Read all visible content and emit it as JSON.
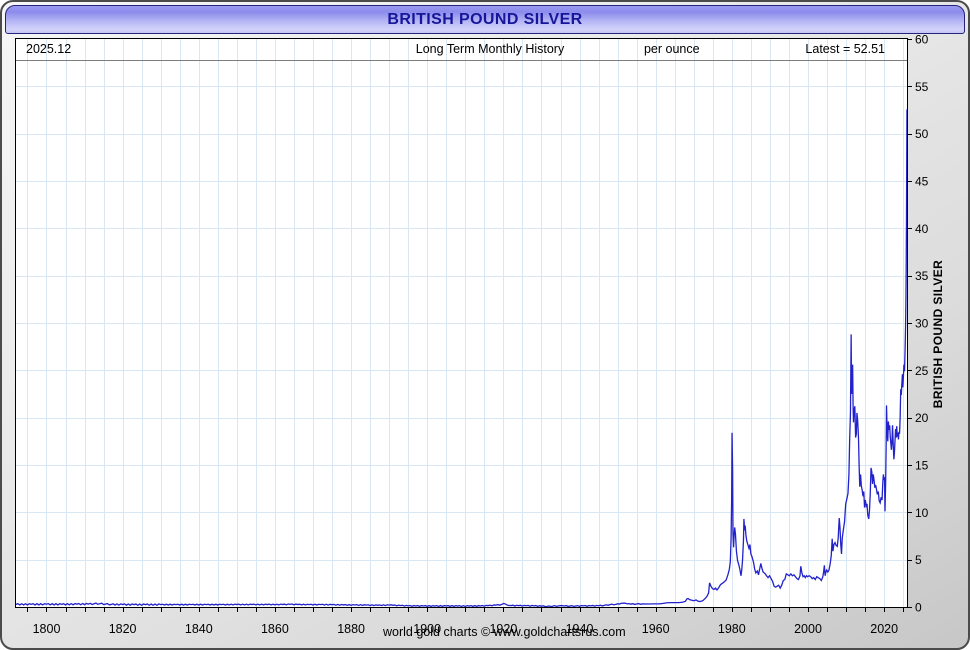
{
  "window": {
    "title": "BRITISH POUND SILVER"
  },
  "info_bar": {
    "date": "2025.12",
    "subtitle": "Long Term Monthly History",
    "unit": "per ounce",
    "latest": "Latest = 52.51"
  },
  "footer": {
    "credit": "world gold charts © www.goldchartsrus.com"
  },
  "colors": {
    "line": "#2222cd",
    "grid": "#d9e7f5",
    "plot_border": "#000000",
    "title_text": "#16169b",
    "titlebar_top": "#8b8bec",
    "titlebar_bottom": "#d2d2fa",
    "body_gray": "#e0e0e0"
  },
  "chart_data": {
    "type": "line",
    "title": "BRITISH POUND SILVER",
    "subtitle": "Long Term Monthly History",
    "ylabel": "BRITISH POUND SILVER",
    "unit": "per ounce",
    "latest_value": 52.51,
    "latest_period": "2025.12",
    "x_domain": [
      1792,
      2026
    ],
    "y_domain": [
      0,
      60
    ],
    "x_tick_labels": [
      1800,
      1820,
      1840,
      1860,
      1880,
      1900,
      1920,
      1940,
      1960,
      1980,
      2000,
      2020
    ],
    "x_minor_tick_step": 5,
    "y_tick_values": [
      0,
      5,
      10,
      15,
      20,
      25,
      30,
      35,
      40,
      45,
      50,
      55,
      60
    ],
    "grid": true,
    "legend": "none",
    "line_color": "#2222cd",
    "grid_color": "#d9e7f5",
    "series_name": "British pound silver price per ounce (monthly)",
    "points": [
      [
        1792,
        0.28
      ],
      [
        1796,
        0.28
      ],
      [
        1800,
        0.29
      ],
      [
        1804,
        0.28
      ],
      [
        1808,
        0.3
      ],
      [
        1811,
        0.31
      ],
      [
        1812.5,
        0.34
      ],
      [
        1814,
        0.35
      ],
      [
        1815.5,
        0.31
      ],
      [
        1817,
        0.27
      ],
      [
        1820,
        0.26
      ],
      [
        1823,
        0.25
      ],
      [
        1826,
        0.25
      ],
      [
        1830,
        0.25
      ],
      [
        1834,
        0.25
      ],
      [
        1838,
        0.25
      ],
      [
        1842,
        0.25
      ],
      [
        1846,
        0.25
      ],
      [
        1850,
        0.26
      ],
      [
        1854,
        0.26
      ],
      [
        1858,
        0.26
      ],
      [
        1862,
        0.26
      ],
      [
        1864,
        0.28
      ],
      [
        1866,
        0.26
      ],
      [
        1869,
        0.25
      ],
      [
        1872,
        0.25
      ],
      [
        1875,
        0.24
      ],
      [
        1878,
        0.22
      ],
      [
        1881,
        0.21
      ],
      [
        1884,
        0.2
      ],
      [
        1887,
        0.18
      ],
      [
        1890,
        0.2
      ],
      [
        1891,
        0.18
      ],
      [
        1893,
        0.15
      ],
      [
        1895,
        0.12
      ],
      [
        1897,
        0.11
      ],
      [
        1899,
        0.11
      ],
      [
        1902,
        0.1
      ],
      [
        1905,
        0.11
      ],
      [
        1908,
        0.1
      ],
      [
        1911,
        0.1
      ],
      [
        1914,
        0.11
      ],
      [
        1916,
        0.14
      ],
      [
        1918,
        0.19
      ],
      [
        1919.5,
        0.26
      ],
      [
        1920.1,
        0.38
      ],
      [
        1920.6,
        0.3
      ],
      [
        1921.2,
        0.17
      ],
      [
        1922,
        0.15
      ],
      [
        1924,
        0.14
      ],
      [
        1926,
        0.13
      ],
      [
        1928,
        0.12
      ],
      [
        1930,
        0.09
      ],
      [
        1931.5,
        0.07
      ],
      [
        1933,
        0.09
      ],
      [
        1934.5,
        0.12
      ],
      [
        1935.3,
        0.15
      ],
      [
        1936,
        0.11
      ],
      [
        1937.5,
        0.1
      ],
      [
        1939,
        0.1
      ],
      [
        1941,
        0.12
      ],
      [
        1943,
        0.12
      ],
      [
        1945,
        0.13
      ],
      [
        1946.5,
        0.17
      ],
      [
        1948,
        0.25
      ],
      [
        1949.5,
        0.28
      ],
      [
        1950.5,
        0.31
      ],
      [
        1951.5,
        0.4
      ],
      [
        1952.5,
        0.33
      ],
      [
        1953.5,
        0.3
      ],
      [
        1955,
        0.32
      ],
      [
        1956.5,
        0.33
      ],
      [
        1958,
        0.32
      ],
      [
        1959.5,
        0.33
      ],
      [
        1961,
        0.33
      ],
      [
        1962,
        0.38
      ],
      [
        1963,
        0.45
      ],
      [
        1964.5,
        0.46
      ],
      [
        1966,
        0.46
      ],
      [
        1967,
        0.5
      ],
      [
        1967.8,
        0.6
      ],
      [
        1968.2,
        0.85
      ],
      [
        1968.5,
        0.9
      ],
      [
        1968.9,
        0.78
      ],
      [
        1969.4,
        0.72
      ],
      [
        1970,
        0.66
      ],
      [
        1970.6,
        0.74
      ],
      [
        1971.2,
        0.6
      ],
      [
        1971.8,
        0.58
      ],
      [
        1972.4,
        0.68
      ],
      [
        1973,
        0.9
      ],
      [
        1973.5,
        1.15
      ],
      [
        1973.9,
        1.5
      ],
      [
        1974.15,
        2.55
      ],
      [
        1974.5,
        2.2
      ],
      [
        1974.9,
        1.95
      ],
      [
        1975.3,
        1.85
      ],
      [
        1975.7,
        2.0
      ],
      [
        1976.1,
        1.8
      ],
      [
        1976.5,
        2.0
      ],
      [
        1977,
        2.35
      ],
      [
        1977.5,
        2.5
      ],
      [
        1978,
        2.65
      ],
      [
        1978.5,
        2.85
      ],
      [
        1979,
        3.45
      ],
      [
        1979.35,
        4.0
      ],
      [
        1979.6,
        4.8
      ],
      [
        1979.8,
        7.2
      ],
      [
        1979.95,
        11.5
      ],
      [
        1980.05,
        18.4
      ],
      [
        1980.2,
        14.5
      ],
      [
        1980.3,
        7.8
      ],
      [
        1980.45,
        6.3
      ],
      [
        1980.6,
        7.6
      ],
      [
        1980.75,
        8.4
      ],
      [
        1980.95,
        7.7
      ],
      [
        1981.2,
        5.9
      ],
      [
        1981.5,
        4.9
      ],
      [
        1981.8,
        4.5
      ],
      [
        1982.1,
        4.0
      ],
      [
        1982.4,
        3.3
      ],
      [
        1982.6,
        3.9
      ],
      [
        1982.8,
        4.9
      ],
      [
        1983.05,
        7.0
      ],
      [
        1983.17,
        9.3
      ],
      [
        1983.35,
        8.1
      ],
      [
        1983.5,
        8.6
      ],
      [
        1983.7,
        7.6
      ],
      [
        1983.9,
        7.0
      ],
      [
        1984.2,
        6.6
      ],
      [
        1984.5,
        6.2
      ],
      [
        1984.75,
        6.6
      ],
      [
        1985,
        5.6
      ],
      [
        1985.3,
        5.3
      ],
      [
        1985.7,
        4.7
      ],
      [
        1986,
        4.0
      ],
      [
        1986.3,
        3.6
      ],
      [
        1986.7,
        3.8
      ],
      [
        1987,
        3.4
      ],
      [
        1987.3,
        4.0
      ],
      [
        1987.6,
        4.6
      ],
      [
        1987.9,
        4.1
      ],
      [
        1988.2,
        3.7
      ],
      [
        1988.5,
        3.6
      ],
      [
        1988.8,
        3.5
      ],
      [
        1989.1,
        3.3
      ],
      [
        1989.5,
        3.1
      ],
      [
        1989.9,
        3.3
      ],
      [
        1990.3,
        3.0
      ],
      [
        1990.7,
        2.7
      ],
      [
        1991.1,
        2.2
      ],
      [
        1991.5,
        2.1
      ],
      [
        1991.9,
        2.2
      ],
      [
        1992.3,
        2.3
      ],
      [
        1992.7,
        2.0
      ],
      [
        1993.1,
        2.3
      ],
      [
        1993.5,
        2.8
      ],
      [
        1993.9,
        2.9
      ],
      [
        1994.3,
        3.5
      ],
      [
        1994.7,
        3.4
      ],
      [
        1995.1,
        3.3
      ],
      [
        1995.5,
        3.5
      ],
      [
        1995.9,
        3.3
      ],
      [
        1996.3,
        3.4
      ],
      [
        1996.7,
        3.2
      ],
      [
        1997.1,
        3.0
      ],
      [
        1997.5,
        2.9
      ],
      [
        1997.9,
        3.3
      ],
      [
        1998.1,
        4.3
      ],
      [
        1998.4,
        3.6
      ],
      [
        1998.7,
        3.2
      ],
      [
        1999,
        3.3
      ],
      [
        1999.3,
        3.1
      ],
      [
        1999.6,
        3.3
      ],
      [
        1999.9,
        3.2
      ],
      [
        2000.3,
        3.3
      ],
      [
        2000.7,
        3.2
      ],
      [
        2001.1,
        3.0
      ],
      [
        2001.5,
        3.1
      ],
      [
        2001.9,
        2.9
      ],
      [
        2002.3,
        3.2
      ],
      [
        2002.7,
        3.1
      ],
      [
        2003.1,
        3.0
      ],
      [
        2003.5,
        2.8
      ],
      [
        2003.9,
        3.2
      ],
      [
        2004.1,
        3.7
      ],
      [
        2004.3,
        4.4
      ],
      [
        2004.5,
        3.3
      ],
      [
        2004.7,
        3.7
      ],
      [
        2004.9,
        3.9
      ],
      [
        2005.2,
        3.7
      ],
      [
        2005.5,
        3.9
      ],
      [
        2005.8,
        4.5
      ],
      [
        2006.1,
        5.4
      ],
      [
        2006.35,
        7.2
      ],
      [
        2006.55,
        5.9
      ],
      [
        2006.8,
        6.6
      ],
      [
        2007.1,
        6.8
      ],
      [
        2007.4,
        6.5
      ],
      [
        2007.7,
        6.4
      ],
      [
        2007.95,
        7.4
      ],
      [
        2008.2,
        9.4
      ],
      [
        2008.4,
        8.4
      ],
      [
        2008.6,
        6.6
      ],
      [
        2008.8,
        5.6
      ],
      [
        2009,
        7.3
      ],
      [
        2009.3,
        8.2
      ],
      [
        2009.6,
        9.0
      ],
      [
        2009.9,
        10.9
      ],
      [
        2010.2,
        11.4
      ],
      [
        2010.5,
        12.0
      ],
      [
        2010.75,
        14.0
      ],
      [
        2010.95,
        17.8
      ],
      [
        2011.15,
        20.5
      ],
      [
        2011.33,
        28.8
      ],
      [
        2011.45,
        22.5
      ],
      [
        2011.6,
        24.8
      ],
      [
        2011.72,
        25.6
      ],
      [
        2011.85,
        21.0
      ],
      [
        2011.95,
        19.5
      ],
      [
        2012.1,
        20.8
      ],
      [
        2012.3,
        21.2
      ],
      [
        2012.5,
        17.9
      ],
      [
        2012.7,
        18.3
      ],
      [
        2012.85,
        20.5
      ],
      [
        2013.05,
        19.7
      ],
      [
        2013.25,
        18.0
      ],
      [
        2013.45,
        14.6
      ],
      [
        2013.6,
        12.7
      ],
      [
        2013.8,
        14.0
      ],
      [
        2014,
        12.8
      ],
      [
        2014.2,
        12.4
      ],
      [
        2014.45,
        11.7
      ],
      [
        2014.65,
        12.2
      ],
      [
        2014.85,
        10.5
      ],
      [
        2015.05,
        11.3
      ],
      [
        2015.3,
        10.7
      ],
      [
        2015.5,
        10.9
      ],
      [
        2015.7,
        9.7
      ],
      [
        2015.95,
        9.3
      ],
      [
        2016.15,
        10.2
      ],
      [
        2016.35,
        12.0
      ],
      [
        2016.55,
        14.7
      ],
      [
        2016.75,
        14.3
      ],
      [
        2016.95,
        13.0
      ],
      [
        2017.15,
        14.0
      ],
      [
        2017.35,
        13.4
      ],
      [
        2017.55,
        12.6
      ],
      [
        2017.75,
        12.9
      ],
      [
        2017.95,
        12.5
      ],
      [
        2018.2,
        11.9
      ],
      [
        2018.45,
        12.2
      ],
      [
        2018.7,
        11.2
      ],
      [
        2018.95,
        11.0
      ],
      [
        2019.2,
        11.6
      ],
      [
        2019.45,
        11.3
      ],
      [
        2019.65,
        13.2
      ],
      [
        2019.8,
        14.0
      ],
      [
        2019.95,
        13.4
      ],
      [
        2020.1,
        13.7
      ],
      [
        2020.22,
        10.1
      ],
      [
        2020.4,
        13.3
      ],
      [
        2020.55,
        17.9
      ],
      [
        2020.62,
        21.3
      ],
      [
        2020.78,
        18.7
      ],
      [
        2020.95,
        17.5
      ],
      [
        2021.1,
        19.6
      ],
      [
        2021.3,
        18.7
      ],
      [
        2021.45,
        19.2
      ],
      [
        2021.6,
        18.0
      ],
      [
        2021.75,
        17.3
      ],
      [
        2021.9,
        16.6
      ],
      [
        2022.05,
        17.4
      ],
      [
        2022.2,
        19.2
      ],
      [
        2022.4,
        17.0
      ],
      [
        2022.55,
        15.6
      ],
      [
        2022.7,
        16.3
      ],
      [
        2022.85,
        17.6
      ],
      [
        2023,
        18.8
      ],
      [
        2023.15,
        17.9
      ],
      [
        2023.3,
        19.1
      ],
      [
        2023.45,
        18.0
      ],
      [
        2023.6,
        18.4
      ],
      [
        2023.75,
        17.7
      ],
      [
        2023.9,
        18.5
      ],
      [
        2024.05,
        18.3
      ],
      [
        2024.2,
        20.0
      ],
      [
        2024.35,
        23.0
      ],
      [
        2024.5,
        22.4
      ],
      [
        2024.65,
        23.6
      ],
      [
        2024.8,
        24.6
      ],
      [
        2024.9,
        23.2
      ],
      [
        2025.05,
        24.3
      ],
      [
        2025.2,
        25.6
      ],
      [
        2025.35,
        24.9
      ],
      [
        2025.5,
        27.2
      ],
      [
        2025.62,
        29.5
      ],
      [
        2025.72,
        32.5
      ],
      [
        2025.8,
        36.5
      ],
      [
        2025.87,
        41.0
      ],
      [
        2025.93,
        47.0
      ],
      [
        2025.99,
        52.51
      ]
    ]
  }
}
